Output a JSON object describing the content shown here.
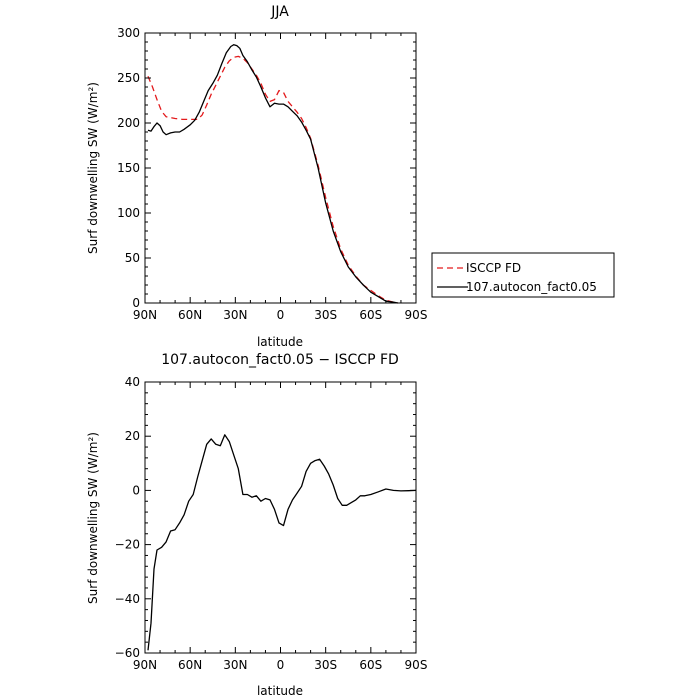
{
  "chart_data": [
    {
      "type": "line",
      "title": "JJA",
      "xlabel": "latitude",
      "ylabel": "Surf downwelling SW (W/m²)",
      "xlim": [
        90,
        -90
      ],
      "ylim": [
        0,
        300
      ],
      "x_ticks": [
        90,
        60,
        30,
        0,
        -30,
        -60,
        -90
      ],
      "x_tick_labels": [
        "90N",
        "60N",
        "30N",
        "0",
        "30S",
        "60S",
        "90S"
      ],
      "y_ticks": [
        0,
        50,
        100,
        150,
        200,
        250,
        300
      ],
      "y_tick_labels": [
        "0",
        "50",
        "100",
        "150",
        "200",
        "250",
        "300"
      ],
      "legend": "right",
      "series": [
        {
          "name": "ISCCP FD",
          "color": "#e31a1c",
          "dash": "dashed",
          "x": [
            88,
            85,
            82,
            79,
            76,
            73,
            70,
            65,
            60,
            55,
            52,
            49,
            46,
            43,
            40,
            37,
            34,
            31,
            28,
            25,
            22,
            19,
            16,
            13,
            10,
            7,
            4,
            1,
            -2,
            -5,
            -8,
            -11,
            -14,
            -17,
            -20,
            -25,
            -30,
            -35,
            -40,
            -45,
            -50,
            -55,
            -60,
            -65,
            -70,
            -75,
            -78
          ],
          "y": [
            252,
            240,
            226,
            213,
            207,
            206,
            205,
            204,
            204,
            204,
            209,
            220,
            232,
            242,
            252,
            262,
            269,
            273,
            274,
            272,
            267,
            260,
            253,
            244,
            232,
            224,
            226,
            236,
            234,
            224,
            218,
            212,
            205,
            195,
            183,
            153,
            117,
            85,
            60,
            42,
            30,
            20,
            14,
            8,
            3,
            1,
            0
          ]
        },
        {
          "name": "107.autocon_fact0.05",
          "color": "#000000",
          "dash": "solid",
          "x": [
            88,
            86,
            84,
            82,
            80,
            78,
            76,
            73,
            70,
            67,
            64,
            60,
            57,
            54,
            51,
            48,
            45,
            42,
            39,
            36,
            33,
            31,
            29,
            27,
            25,
            22,
            19,
            16,
            13,
            10,
            7,
            4,
            1,
            -2,
            -5,
            -8,
            -11,
            -14,
            -17,
            -20,
            -25,
            -30,
            -35,
            -40,
            -45,
            -50,
            -55,
            -60,
            -65,
            -70,
            -75,
            -78
          ],
          "y": [
            192,
            191,
            196,
            200,
            197,
            190,
            187,
            189,
            190,
            190,
            193,
            198,
            203,
            212,
            224,
            236,
            244,
            253,
            266,
            278,
            285,
            287,
            286,
            283,
            275,
            268,
            259,
            251,
            240,
            228,
            218,
            222,
            221,
            221,
            218,
            213,
            208,
            201,
            192,
            182,
            150,
            111,
            80,
            57,
            40,
            29,
            20,
            12,
            7,
            2,
            1,
            0
          ]
        }
      ]
    },
    {
      "type": "line",
      "title": "107.autocon_fact0.05 − ISCCP FD",
      "xlabel": "latitude",
      "ylabel": "Surf downwelling SW (W/m²)",
      "xlim": [
        90,
        -90
      ],
      "ylim": [
        -60,
        40
      ],
      "x_ticks": [
        90,
        60,
        30,
        0,
        -30,
        -60,
        -90
      ],
      "x_tick_labels": [
        "90N",
        "60N",
        "30N",
        "0",
        "30S",
        "60S",
        "90S"
      ],
      "y_ticks": [
        -60,
        -40,
        -20,
        0,
        20,
        40
      ],
      "y_tick_labels": [
        "−60",
        "−40",
        "−20",
        "0",
        "20",
        "40"
      ],
      "series": [
        {
          "color": "#000000",
          "dash": "solid",
          "x": [
            88,
            86,
            84,
            82,
            79,
            76,
            73,
            70,
            67,
            64,
            61,
            58,
            55,
            52,
            49,
            46,
            43,
            40,
            37,
            34,
            31,
            28,
            25,
            22,
            19,
            16,
            13,
            10,
            7,
            4,
            1,
            -2,
            -5,
            -8,
            -11,
            -14,
            -17,
            -20,
            -23,
            -26,
            -29,
            -32,
            -35,
            -38,
            -41,
            -44,
            -47,
            -50,
            -53,
            -56,
            -60,
            -65,
            -70,
            -75,
            -80,
            -85,
            -90
          ],
          "y": [
            -59,
            -49,
            -29,
            -22,
            -21,
            -19,
            -15,
            -14.5,
            -12,
            -9,
            -4,
            -1.5,
            5,
            11,
            17,
            19,
            17,
            16.5,
            20.5,
            18,
            13,
            8,
            -1.5,
            -1.5,
            -2.5,
            -2,
            -4,
            -3,
            -3.5,
            -7,
            -12,
            -13,
            -7,
            -3.5,
            -1,
            1.5,
            7,
            10,
            11,
            11.5,
            9,
            6,
            2,
            -3,
            -5.5,
            -5.5,
            -4.5,
            -3.5,
            -2,
            -2,
            -1.5,
            -0.5,
            0.5,
            0,
            -0.2,
            -0.1,
            0
          ]
        }
      ]
    }
  ]
}
